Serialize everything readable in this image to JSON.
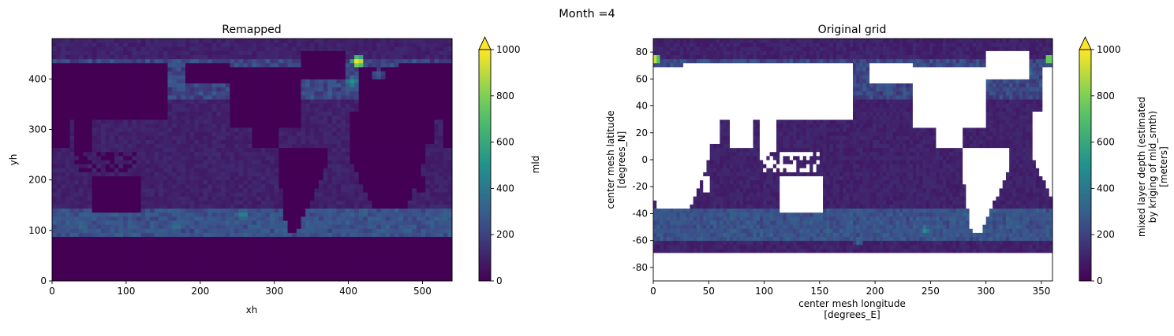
{
  "figure": {
    "suptitle": "Month =4"
  },
  "colors": {
    "viridis_low": "#440154",
    "viridis_mid_low": "#3b528b",
    "viridis_mid": "#21918c",
    "viridis_mid_high": "#5ec962",
    "viridis_high": "#fde725",
    "land_mask": "#ffffff"
  },
  "chart_data": [
    {
      "type": "heatmap",
      "title": "Remapped",
      "xlabel": "xh",
      "ylabel": "yh",
      "xlim": [
        0,
        540
      ],
      "ylim": [
        0,
        480
      ],
      "xticks": [
        0,
        100,
        200,
        300,
        400,
        500
      ],
      "yticks": [
        0,
        100,
        200,
        300,
        400
      ],
      "colormap": "viridis",
      "colorbar": {
        "label": "mld",
        "vmin": 0,
        "vmax": 1000,
        "ticks": [
          0,
          200,
          400,
          600,
          800,
          1000
        ],
        "extend": "max"
      },
      "land_shown": false,
      "hotspots": [
        {
          "x": 413,
          "y": 435,
          "value": 1000
        },
        {
          "x": 405,
          "y": 395,
          "value": 500
        },
        {
          "x": 258,
          "y": 132,
          "value": 450
        },
        {
          "x": 168,
          "y": 110,
          "value": 380
        },
        {
          "x": 200,
          "y": 122,
          "value": 300
        },
        {
          "x": 378,
          "y": 392,
          "value": 300
        },
        {
          "x": 440,
          "y": 410,
          "value": 280
        }
      ]
    },
    {
      "type": "heatmap",
      "title": "Original grid",
      "xlabel": "center mesh longitude\n[degrees_E]",
      "ylabel": "center mesh latitude\n[degrees_N]",
      "xlim": [
        0,
        360
      ],
      "ylim": [
        -90,
        90
      ],
      "xticks": [
        0,
        50,
        100,
        150,
        200,
        250,
        300,
        350
      ],
      "yticks": [
        -80,
        -60,
        -40,
        -20,
        0,
        20,
        40,
        60,
        80
      ],
      "colormap": "viridis",
      "colorbar": {
        "label": "mixed layer depth (estimated\nby kriging of mld_smth)\n[meters]",
        "vmin": 0,
        "vmax": 1000,
        "ticks": [
          0,
          200,
          400,
          600,
          800,
          1000
        ],
        "extend": "max"
      },
      "land_shown": true,
      "hotspots": [
        {
          "x": 2,
          "y": 75,
          "value": 1000
        },
        {
          "x": 357,
          "y": 75,
          "value": 900
        },
        {
          "x": 245,
          "y": -52,
          "value": 500
        },
        {
          "x": 185,
          "y": -60,
          "value": 350
        },
        {
          "x": 208,
          "y": -56,
          "value": 320
        },
        {
          "x": 300,
          "y": 58,
          "value": 350
        },
        {
          "x": 322,
          "y": 62,
          "value": 300
        },
        {
          "x": 340,
          "y": 65,
          "value": 350
        }
      ]
    }
  ]
}
